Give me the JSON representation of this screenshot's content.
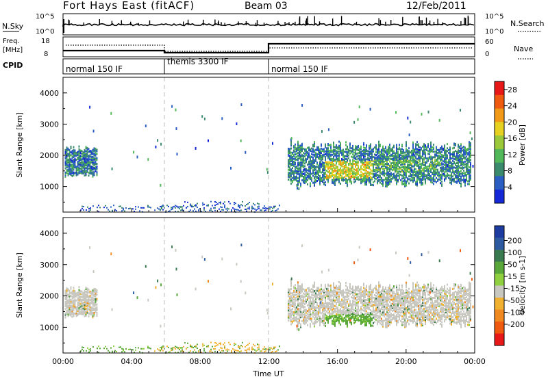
{
  "header": {
    "station": "Fort Hays East (fitACF)",
    "beam": "Beam 03",
    "date": "12/Feb/2011"
  },
  "noise_panel": {
    "left_label": "N.Sky",
    "right_label": "N.Search",
    "left_ticks": [
      "10^5",
      "10^0"
    ],
    "right_ticks": [
      "10^5",
      "10^0"
    ]
  },
  "freq_panel": {
    "left_label_line1": "Freq.",
    "left_label_line2": "[MHz]",
    "right_label": "Nave",
    "left_ticks": [
      "18",
      "8"
    ],
    "right_ticks": [
      "60",
      "0"
    ]
  },
  "cpid": {
    "label": "CPID",
    "segments": [
      {
        "start_hour": 0,
        "end_hour": 6,
        "name": "normal 150 IF"
      },
      {
        "start_hour": 6,
        "end_hour": 12,
        "name": "themis 3300 IF"
      },
      {
        "start_hour": 12,
        "end_hour": 24,
        "name": "normal 150 IF"
      }
    ]
  },
  "x_axis": {
    "label": "Time UT",
    "ticks": [
      "00:00",
      "04:00",
      "08:00",
      "12:00",
      "16:00",
      "20:00",
      "00:00"
    ]
  },
  "colors": {
    "power": [
      "#1428d8",
      "#2a5ec2",
      "#3c8a6e",
      "#52b85a",
      "#9ac83a",
      "#e6d020",
      "#f09a18",
      "#f05a10",
      "#e81818"
    ],
    "velocity": [
      "#1e3ca0",
      "#2e5aa0",
      "#3a7a50",
      "#5aa83c",
      "#8ed040",
      "#c8c8c0",
      "#f0b030",
      "#f08a20",
      "#f05a10",
      "#e81818"
    ],
    "ground": "#c8c8c0"
  },
  "chart_data": [
    {
      "type": "heatmap",
      "title": "",
      "quantity": "Power",
      "xlabel": "Time UT",
      "ylabel": "Slant Range [km]",
      "xlim_hours": [
        0,
        24
      ],
      "ylim_km": [
        180,
        4500
      ],
      "y_ticks": [
        1000,
        2000,
        3000,
        4000
      ],
      "colorbar": {
        "label": "Power [dB]",
        "range": [
          0,
          30
        ],
        "ticks": [
          "4",
          "8",
          "12",
          "16",
          "20",
          "24",
          "28"
        ]
      },
      "regions": [
        {
          "t0": 0.1,
          "t1": 2.0,
          "r0": 1400,
          "r1": 2300,
          "dominant_db": 6
        },
        {
          "t0": 13.1,
          "t1": 23.8,
          "r0": 1150,
          "r1": 2400,
          "dominant_db": 7
        },
        {
          "t0": 15.3,
          "t1": 18.0,
          "r0": 1300,
          "r1": 1800,
          "dominant_db": 18
        },
        {
          "t0": 1.0,
          "t1": 12.5,
          "r0": 180,
          "r1": 500,
          "dominant_db": 5
        }
      ]
    },
    {
      "type": "heatmap",
      "title": "",
      "quantity": "Velocity",
      "xlabel": "Time UT",
      "ylabel": "Slant Range [km]",
      "xlim_hours": [
        0,
        24
      ],
      "ylim_km": [
        180,
        4500
      ],
      "y_ticks": [
        1000,
        2000,
        3000,
        4000
      ],
      "colorbar": {
        "label": "Velocity [m s-1]",
        "range": [
          -250,
          250
        ],
        "ticks": [
          "200",
          "100",
          "50",
          "15",
          "-15",
          "-50",
          "-100",
          "-200"
        ]
      },
      "regions": [
        {
          "t0": 0.1,
          "t1": 2.0,
          "r0": 1400,
          "r1": 2300,
          "dominant_velocity": 0
        },
        {
          "t0": 13.1,
          "t1": 23.8,
          "r0": 1150,
          "r1": 2400,
          "dominant_velocity": 0
        },
        {
          "t0": 15.3,
          "t1": 18.0,
          "r0": 1200,
          "r1": 1500,
          "dominant_velocity": 40
        },
        {
          "t0": 6.0,
          "t1": 12.5,
          "r0": 180,
          "r1": 500,
          "dominant_velocity": -40
        }
      ]
    }
  ]
}
